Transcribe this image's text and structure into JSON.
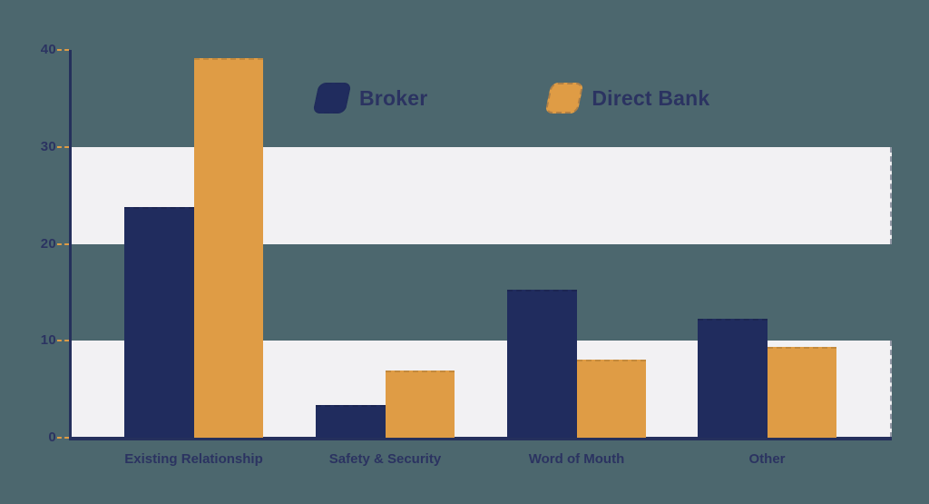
{
  "colors": {
    "background": "#4c676e",
    "band": "#f2f1f3",
    "axis": "#25305c",
    "tick_dash": "#df9c45",
    "label_text": "#2b3361",
    "broker": "#202c5e",
    "direct_bank": "#df9c45"
  },
  "legend": {
    "items": [
      {
        "label": "Broker",
        "color": "#202c5e"
      },
      {
        "label": "Direct Bank",
        "color": "#df9c45"
      }
    ]
  },
  "chart_data": {
    "type": "bar",
    "title": "",
    "xlabel": "",
    "ylabel": "",
    "categories": [
      "Existing Relationship",
      "Safety & Security",
      "Word of Mouth",
      "Other"
    ],
    "series": [
      {
        "name": "Broker",
        "color": "#202c5e",
        "values": [
          23.8,
          3.4,
          15.3,
          12.3
        ]
      },
      {
        "name": "Direct Bank",
        "color": "#df9c45",
        "values": [
          39.2,
          6.9,
          8.1,
          9.4
        ]
      }
    ],
    "ylim": [
      0,
      40
    ],
    "yticks": [
      0,
      10,
      20,
      30,
      40
    ],
    "grid": "alternating-horizontal-bands",
    "band_ranges": [
      [
        0,
        10
      ],
      [
        20,
        30
      ]
    ],
    "legend_position": "top-center"
  }
}
